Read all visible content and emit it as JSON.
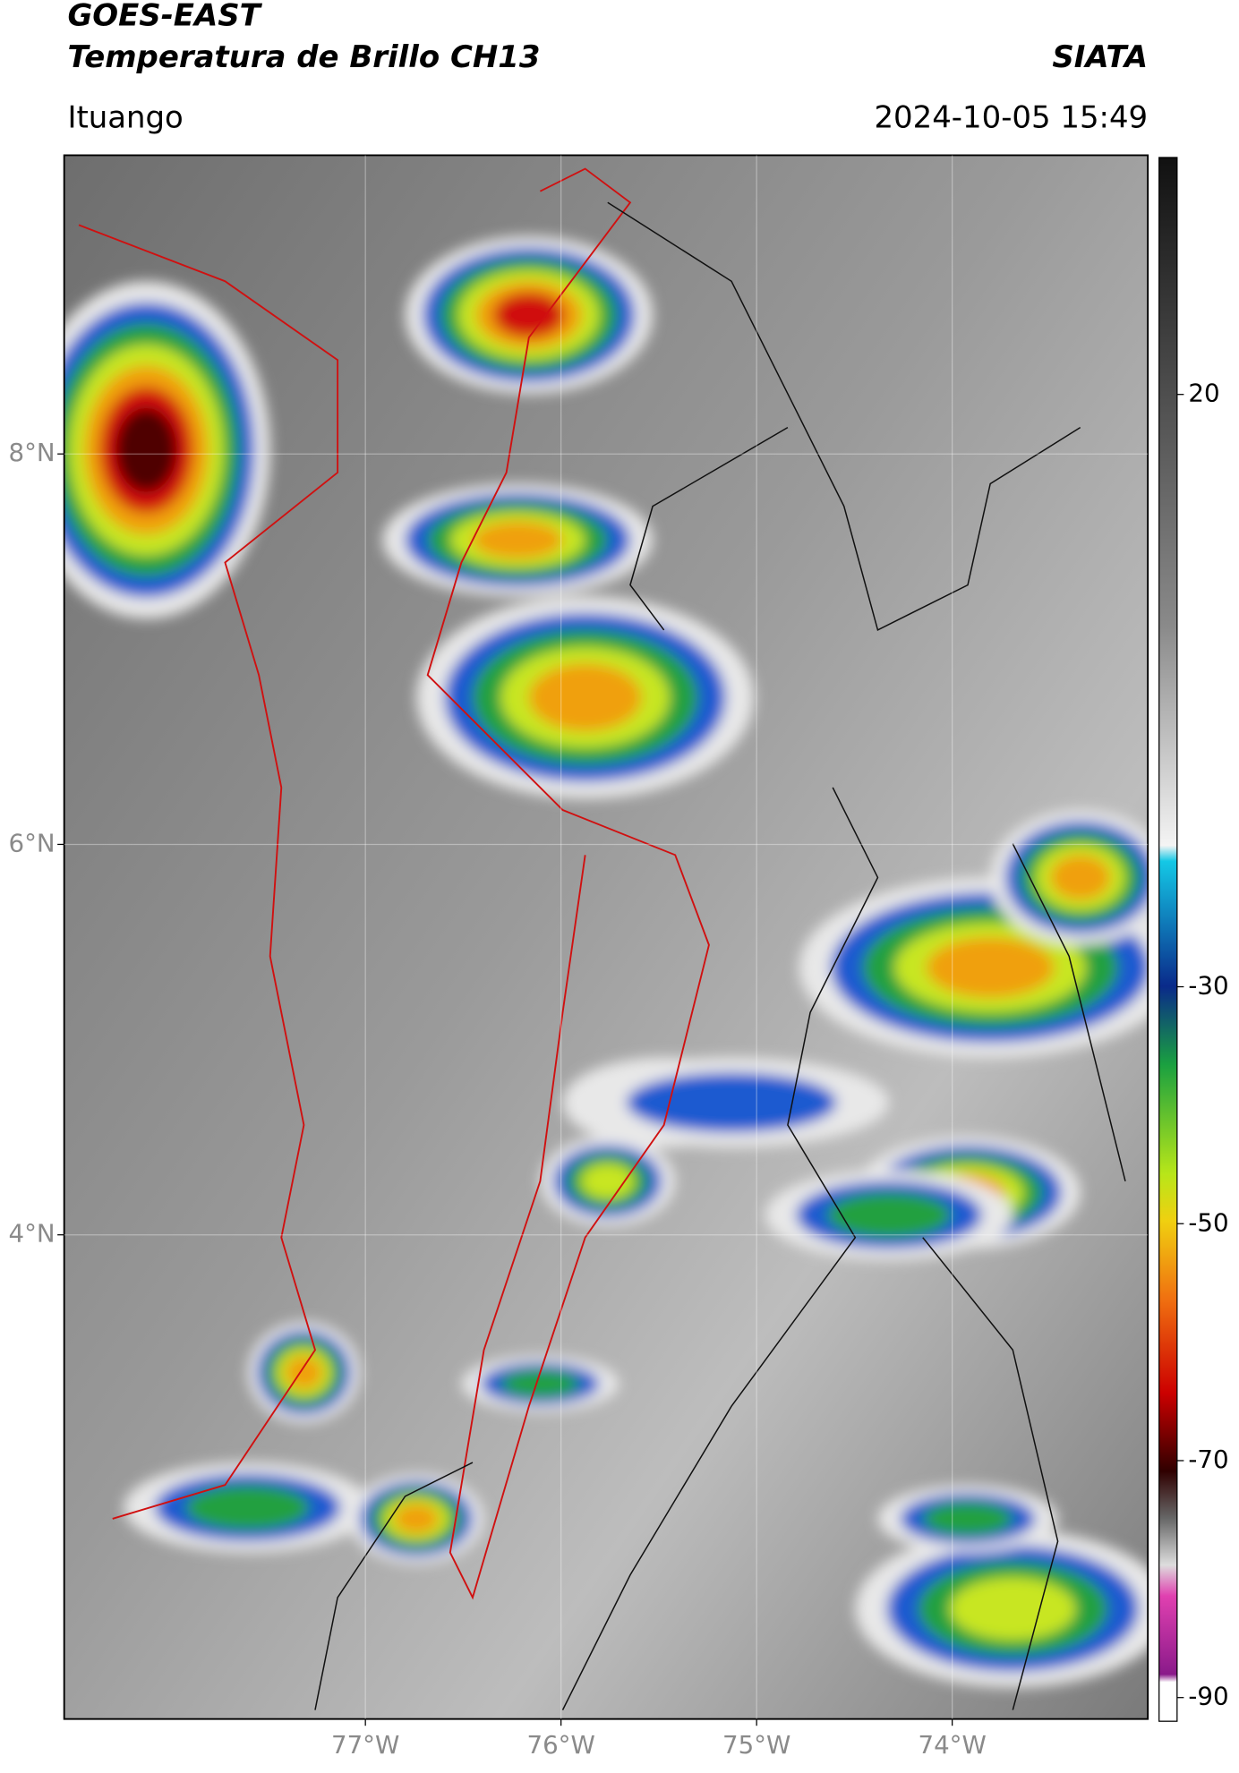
{
  "header": {
    "satellite": "GOES-EAST",
    "product": "Temperatura de Brillo CH13",
    "source": "SIATA",
    "location": "Ituango",
    "datetime": "2024-10-05 15:49"
  },
  "map": {
    "xlim": [
      -78.54,
      -73.0
    ],
    "ylim": [
      1.52,
      9.53
    ],
    "xticks": [
      {
        "value": -77,
        "label": "77°W"
      },
      {
        "value": -76,
        "label": "76°W"
      },
      {
        "value": -75,
        "label": "75°W"
      },
      {
        "value": -74,
        "label": "74°W"
      }
    ],
    "yticks": [
      {
        "value": 4,
        "label": "4°N"
      },
      {
        "value": 6,
        "label": "6°N"
      },
      {
        "value": 8,
        "label": "8°N"
      }
    ]
  },
  "colorbar": {
    "lim": [
      -92,
      40
    ],
    "ticks": [
      -90,
      -70,
      -50,
      -30,
      20
    ]
  }
}
